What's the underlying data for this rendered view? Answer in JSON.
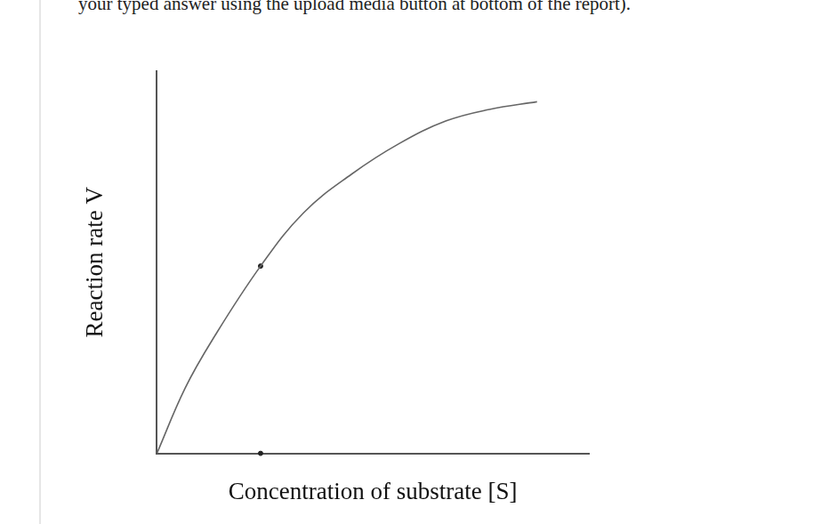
{
  "page_text": "your typed answer using the upload media button at bottom of the report).",
  "chart_data": {
    "type": "line",
    "x_label": "Concentration of substrate [S]",
    "y_label": "Reaction rate V",
    "x": [
      0,
      0.65,
      1.3,
      2.4,
      3.4,
      4.5,
      5.6,
      6.7,
      7.7,
      8.8
    ],
    "values": [
      0,
      1.7,
      3.0,
      4.9,
      6.3,
      7.3,
      8.1,
      8.7,
      9.0,
      9.2
    ],
    "color": "#666666",
    "highlight": {
      "x": 2.4,
      "y": 4.9
    },
    "xlim": [
      0,
      10
    ],
    "ylim": [
      0,
      10
    ],
    "tick_labels": false,
    "grid": false
  }
}
